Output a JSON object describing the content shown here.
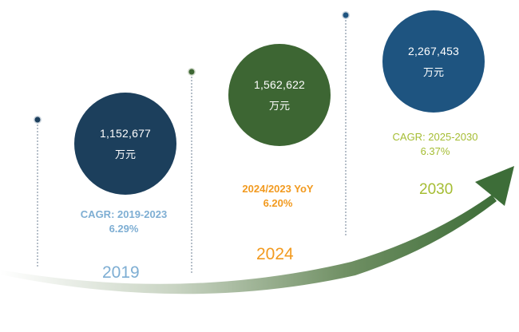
{
  "chart_data": {
    "type": "bubble",
    "colors": {
      "y2019": "#1c3f5c",
      "y2024": "#3d6633",
      "y2030": "#1e5480",
      "stat_2019": "#7eaed3",
      "stat_2024": "#f29a1f",
      "stat_2030": "#a5bd33",
      "arrow": "#3d6d38",
      "pin_line": "#6c7f93"
    },
    "points": [
      {
        "year": "2019",
        "value": 1152677,
        "value_label": "1,152,677",
        "unit": "万元",
        "stat_line1": "CAGR: 2019-2023",
        "stat_line2": "6.29%"
      },
      {
        "year": "2024",
        "value": 1562622,
        "value_label": "1,562,622",
        "unit": "万元",
        "stat_line1": "2024/2023 YoY",
        "stat_line2": "6.20%"
      },
      {
        "year": "2030",
        "value": 2267453,
        "value_label": "2,267,453",
        "unit": "万元",
        "stat_line1": "CAGR: 2025-2030",
        "stat_line2": "6.37%"
      }
    ]
  }
}
